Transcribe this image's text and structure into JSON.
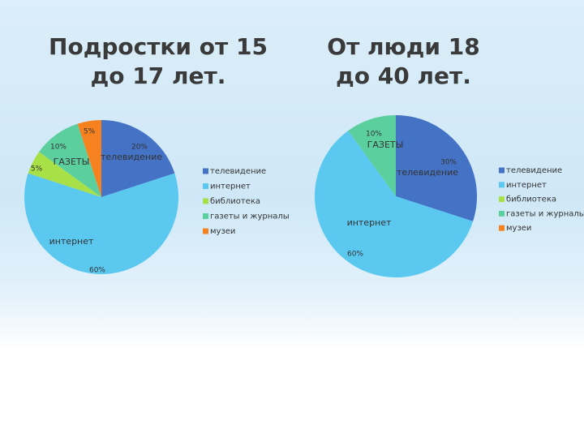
{
  "chart_data": [
    {
      "type": "pie",
      "title": "Подростки от 15 до 17 лет.",
      "categories": [
        "телевидение",
        "интернет",
        "библиотека",
        "газеты и журналы",
        "музеи"
      ],
      "values": [
        20,
        60,
        5,
        10,
        5
      ],
      "value_labels": [
        "20%",
        "60%",
        "5%",
        "10%",
        "5%"
      ],
      "slice_labels": [
        "телевидение",
        "интернет",
        null,
        "ГАЗЕТЫ",
        null
      ],
      "colors": [
        "#4472c4",
        "#5bc8f0",
        "#a8e048",
        "#5ccf9e",
        "#f5821f"
      ],
      "legend": "right"
    },
    {
      "type": "pie",
      "title": "От люди 18 до 40 лет.",
      "categories": [
        "телевидение",
        "интернет",
        "библиотека",
        "газеты и журналы",
        "музеи"
      ],
      "values": [
        30,
        60,
        0,
        10,
        0
      ],
      "value_labels": [
        "30%",
        "60%",
        null,
        "10%",
        null
      ],
      "slice_labels": [
        "телевидение",
        "интернет",
        null,
        "ГАЗЕТЫ",
        null
      ],
      "colors": [
        "#4472c4",
        "#5bc8f0",
        "#a8e048",
        "#5ccf9e",
        "#f5821f"
      ],
      "legend": "right"
    }
  ]
}
